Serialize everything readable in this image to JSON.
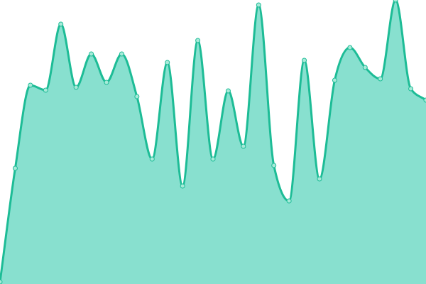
{
  "chart_data": {
    "type": "area",
    "title": "",
    "xlabel": "",
    "ylabel": "",
    "x": [
      0,
      1,
      2,
      3,
      4,
      5,
      6,
      7,
      8,
      9,
      10,
      11,
      12,
      13,
      14,
      15,
      16,
      17,
      18,
      19,
      20,
      21,
      22,
      23,
      24,
      25,
      26,
      27,
      28
    ],
    "values": [
      3,
      163,
      280,
      273,
      366,
      277,
      324,
      284,
      324,
      264,
      176,
      312,
      138,
      343,
      176,
      272,
      194,
      393,
      167,
      117,
      315,
      148,
      287,
      333,
      305,
      289,
      400,
      275,
      259
    ],
    "xlim": [
      0,
      28
    ],
    "ylim": [
      0,
      400
    ],
    "grid": false,
    "axes_visible": false,
    "legend": "none",
    "curve": "smooth",
    "colors": {
      "fill": "#88e0cf",
      "line": "#1dbc96",
      "marker_fill": "#a8ead9",
      "marker_stroke": "#1dbc96"
    }
  }
}
